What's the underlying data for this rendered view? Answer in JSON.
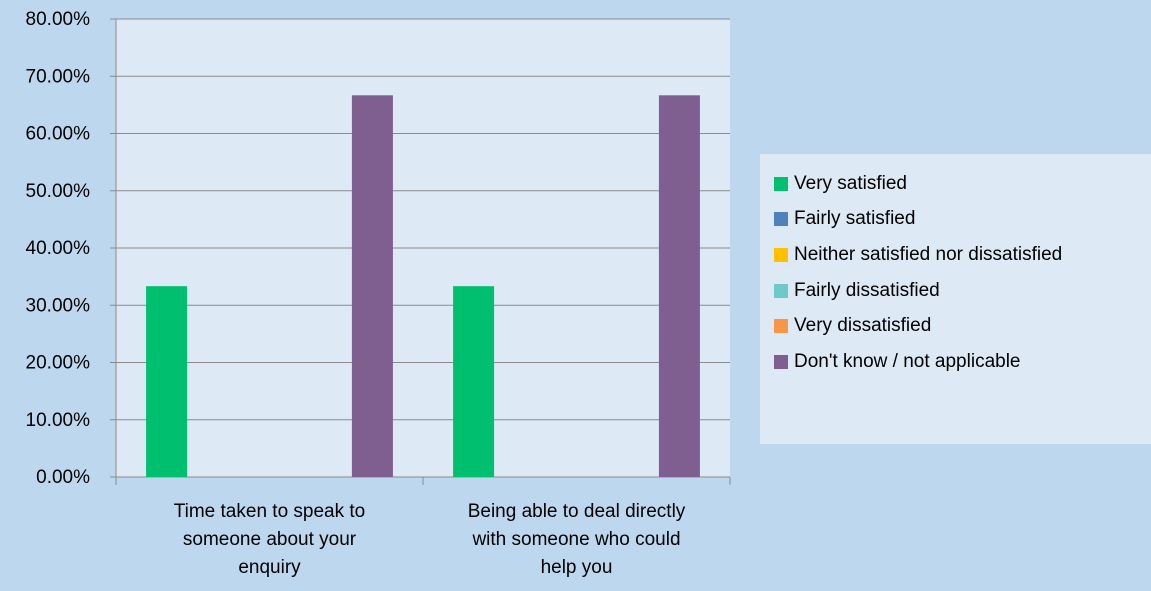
{
  "chart_data": {
    "type": "bar",
    "title": "",
    "xlabel": "",
    "ylabel": "",
    "ylim": [
      0,
      80
    ],
    "y_ticks": [
      "0.00%",
      "10.00%",
      "20.00%",
      "30.00%",
      "40.00%",
      "50.00%",
      "60.00%",
      "70.00%",
      "80.00%"
    ],
    "tick_values": [
      0,
      10,
      20,
      30,
      40,
      50,
      60,
      70,
      80
    ],
    "grid": true,
    "legend_position": "right",
    "categories": [
      [
        "Time taken to speak to",
        "someone about your",
        "enquiry"
      ],
      [
        "Being able to deal directly",
        "with someone who could",
        "help you"
      ]
    ],
    "series": [
      {
        "name": "Very satisfied",
        "color": "#00bf6f",
        "values": [
          33.33,
          33.33
        ]
      },
      {
        "name": "Fairly satisfied",
        "color": "#4f81bd",
        "values": [
          0,
          0
        ]
      },
      {
        "name": "Neither satisfied nor dissatisfied",
        "color": "#ffc000",
        "values": [
          0,
          0
        ]
      },
      {
        "name": "Fairly dissatisfied",
        "color": "#6ecac9",
        "values": [
          0,
          0
        ]
      },
      {
        "name": "Very dissatisfied",
        "color": "#f79646",
        "values": [
          0,
          0
        ]
      },
      {
        "name": "Don't know / not applicable",
        "color": "#7f5f8f",
        "values": [
          66.67,
          66.67
        ]
      }
    ]
  }
}
